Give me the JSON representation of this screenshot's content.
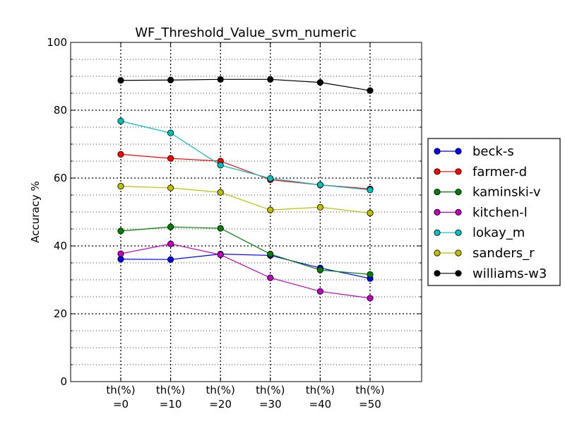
{
  "chart_data": {
    "type": "line",
    "title": "WF_Threshold_Value_svm_numeric",
    "xlabel": "",
    "ylabel": "Accuracy %",
    "categories": [
      "th(%)\n=0",
      "th(%)\n=10",
      "th(%)\n=20",
      "th(%)\n=30",
      "th(%)\n=40",
      "th(%)\n=50"
    ],
    "ylim": [
      0,
      100
    ],
    "yticks": [
      0,
      20,
      40,
      60,
      80,
      100
    ],
    "grid": true,
    "legend": "right",
    "series": [
      {
        "name": "beck-s",
        "color": "#0000ff",
        "values": [
          36.1,
          36.0,
          37.6,
          37.2,
          33.5,
          30.4
        ]
      },
      {
        "name": "farmer-d",
        "color": "#ff0000",
        "values": [
          67.0,
          65.8,
          65.0,
          59.5,
          58.0,
          56.8
        ]
      },
      {
        "name": "kaminski-v",
        "color": "#008000",
        "values": [
          44.4,
          45.6,
          45.2,
          37.6,
          32.9,
          31.6
        ]
      },
      {
        "name": "kitchen-l",
        "color": "#bf00bf",
        "values": [
          37.7,
          40.6,
          37.4,
          30.6,
          26.6,
          24.6
        ]
      },
      {
        "name": "lokay_m",
        "color": "#00bfbf",
        "values": [
          76.8,
          73.3,
          63.8,
          59.9,
          58.0,
          56.5
        ]
      },
      {
        "name": "sanders_r",
        "color": "#bfbf00",
        "values": [
          57.6,
          57.1,
          55.8,
          50.6,
          51.4,
          49.7
        ]
      },
      {
        "name": "williams-w3",
        "color": "#000000",
        "values": [
          88.8,
          88.9,
          89.1,
          89.1,
          88.2,
          85.8
        ]
      }
    ]
  }
}
